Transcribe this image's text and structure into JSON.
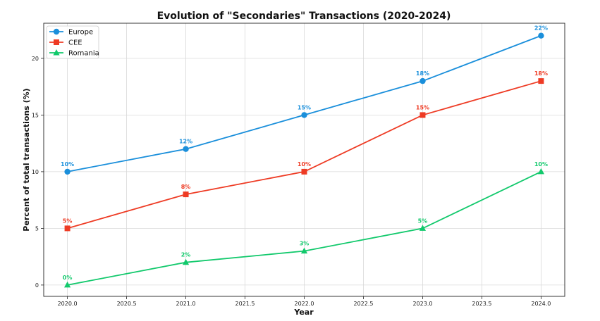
{
  "chart_data": {
    "type": "line",
    "title": "Evolution of \"Secondaries\" Transactions (2020-2024)",
    "xlabel": "Year",
    "ylabel": "Percent of total transactions (%)",
    "x": [
      2020,
      2021,
      2022,
      2023,
      2024
    ],
    "xlim": [
      2019.8,
      2024.2
    ],
    "ylim": [
      -1,
      23.1
    ],
    "xticks": [
      "2020.0",
      "2020.5",
      "2021.0",
      "2021.5",
      "2022.0",
      "2022.5",
      "2023.0",
      "2023.5",
      "2024.0"
    ],
    "yticks": [
      "0",
      "5",
      "10",
      "15",
      "20"
    ],
    "grid": true,
    "legend_position": "top-left",
    "series": [
      {
        "name": "Europe",
        "values": [
          10,
          12,
          15,
          18,
          22
        ],
        "color": "#1a8fdb",
        "marker": "circle",
        "labels": [
          "10%",
          "12%",
          "15%",
          "18%",
          "22%"
        ]
      },
      {
        "name": "CEE",
        "values": [
          5,
          8,
          10,
          15,
          18
        ],
        "color": "#ee3b24",
        "marker": "square",
        "labels": [
          "5%",
          "8%",
          "10%",
          "15%",
          "18%"
        ]
      },
      {
        "name": "Romania",
        "values": [
          0,
          2,
          3,
          5,
          10
        ],
        "color": "#12c96c",
        "marker": "triangle",
        "labels": [
          "0%",
          "2%",
          "3%",
          "5%",
          "10%"
        ]
      }
    ]
  }
}
